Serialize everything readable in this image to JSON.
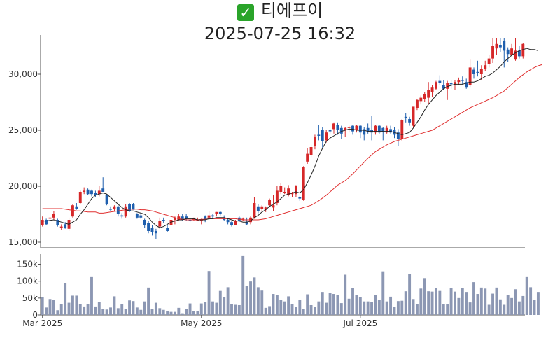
{
  "title": "티에프이",
  "title_icon": "check-mark-icon",
  "subtitle": "2025-07-25 16:32",
  "colors": {
    "up": "#d62728",
    "down": "#1f5fae",
    "ma5": "#222222",
    "ma20": "#e03030",
    "volume": "#8c97b3",
    "axis": "#333333"
  },
  "chart_data": [
    {
      "type": "candlestick",
      "title": "티에프이",
      "subtitle": "2025-07-25 16:32",
      "ylim": [
        14500,
        33500
      ],
      "y_ticks": [
        {
          "v": 15000,
          "label": "15,000"
        },
        {
          "v": 20000,
          "label": "20,000"
        },
        {
          "v": 25000,
          "label": "25,000"
        },
        {
          "v": 30000,
          "label": "30,000"
        }
      ],
      "x_ticks": [
        {
          "i": 0,
          "label": "Mar 2025"
        },
        {
          "i": 42,
          "label": "May 2025"
        },
        {
          "i": 84,
          "label": "Jul 2025"
        }
      ],
      "ohlc": [
        [
          16500,
          17300,
          16400,
          17000
        ],
        [
          17000,
          17100,
          16500,
          16600
        ],
        [
          17100,
          17400,
          16900,
          17200
        ],
        [
          17200,
          17800,
          17000,
          17500
        ],
        [
          17000,
          17100,
          16400,
          16500
        ],
        [
          16300,
          16600,
          16100,
          16400
        ],
        [
          16600,
          16800,
          16200,
          16300
        ],
        [
          16200,
          17200,
          16000,
          17000
        ],
        [
          17300,
          18400,
          17200,
          18300
        ],
        [
          18200,
          18500,
          17900,
          18000
        ],
        [
          18500,
          19600,
          18400,
          19500
        ],
        [
          19500,
          19900,
          19300,
          19600
        ],
        [
          19700,
          19800,
          19200,
          19300
        ],
        [
          19600,
          19700,
          19100,
          19300
        ],
        [
          19400,
          19600,
          19000,
          19200
        ],
        [
          19300,
          20000,
          19100,
          19600
        ],
        [
          19800,
          20800,
          19600,
          19500
        ],
        [
          19200,
          19300,
          18300,
          18400
        ],
        [
          18000,
          18200,
          17800,
          17900
        ],
        [
          18000,
          18300,
          17800,
          18200
        ],
        [
          18200,
          18300,
          17300,
          17500
        ],
        [
          17400,
          17600,
          17100,
          17300
        ],
        [
          17300,
          18400,
          17200,
          18200
        ],
        [
          18400,
          18500,
          17700,
          17800
        ],
        [
          18400,
          18500,
          17900,
          17900
        ],
        [
          17500,
          17600,
          17100,
          17200
        ],
        [
          17400,
          17600,
          17100,
          17200
        ],
        [
          17000,
          17100,
          16300,
          16500
        ],
        [
          16700,
          16900,
          15800,
          16000
        ],
        [
          16300,
          16500,
          15600,
          15900
        ],
        [
          16000,
          16200,
          15300,
          15800
        ],
        [
          16400,
          17200,
          16200,
          16900
        ],
        [
          17000,
          17200,
          16700,
          16900
        ],
        [
          16300,
          16500,
          15900,
          16000
        ],
        [
          16500,
          17100,
          16400,
          17000
        ],
        [
          17000,
          17300,
          16600,
          17200
        ],
        [
          17000,
          17500,
          16900,
          17300
        ],
        [
          17300,
          17500,
          16900,
          17000
        ],
        [
          17300,
          17500,
          16900,
          17100
        ],
        [
          17000,
          17200,
          16800,
          16900
        ],
        [
          17100,
          17200,
          16900,
          17100
        ],
        [
          17000,
          17200,
          16900,
          17000
        ],
        [
          16900,
          17100,
          16600,
          17000
        ],
        [
          17300,
          17400,
          16800,
          17000
        ],
        [
          17200,
          17800,
          17000,
          17400
        ],
        [
          17400,
          17500,
          17100,
          17300
        ],
        [
          17500,
          17700,
          17300,
          17700
        ],
        [
          17700,
          17800,
          17400,
          17500
        ],
        [
          17200,
          17400,
          16900,
          17000
        ],
        [
          17000,
          17100,
          16600,
          16800
        ],
        [
          16800,
          16900,
          16400,
          16500
        ],
        [
          16500,
          17000,
          16500,
          16900
        ],
        [
          17200,
          17300,
          16900,
          16900
        ],
        [
          17100,
          17200,
          16900,
          17100
        ],
        [
          16800,
          17200,
          16500,
          16600
        ],
        [
          16800,
          17300,
          16600,
          17200
        ],
        [
          17200,
          19000,
          17100,
          18500
        ],
        [
          18200,
          18400,
          17600,
          17800
        ],
        [
          18000,
          18300,
          17800,
          18200
        ],
        [
          17900,
          18200,
          17700,
          18100
        ],
        [
          18300,
          18900,
          18200,
          18800
        ],
        [
          18100,
          19200,
          17800,
          18300
        ],
        [
          18500,
          20000,
          18300,
          19600
        ],
        [
          19500,
          20300,
          19300,
          20000
        ],
        [
          19400,
          19900,
          19300,
          19500
        ],
        [
          19200,
          20100,
          19100,
          19800
        ],
        [
          19300,
          19500,
          19000,
          19400
        ],
        [
          19300,
          20100,
          19000,
          20000
        ],
        [
          19000,
          19100,
          18700,
          18900
        ],
        [
          18800,
          21800,
          18700,
          21700
        ],
        [
          22200,
          23400,
          22000,
          22900
        ],
        [
          22800,
          23700,
          22600,
          23500
        ],
        [
          23600,
          24600,
          23300,
          24400
        ],
        [
          24600,
          25500,
          24100,
          24500
        ],
        [
          25000,
          25300,
          23400,
          24000
        ],
        [
          24100,
          25000,
          23900,
          24800
        ],
        [
          25000,
          25100,
          24700,
          24900
        ],
        [
          25100,
          25700,
          24700,
          25600
        ],
        [
          25500,
          25700,
          24600,
          25000
        ],
        [
          25200,
          25400,
          24200,
          24700
        ],
        [
          25000,
          25300,
          24400,
          25200
        ],
        [
          25200,
          25400,
          24800,
          25300
        ],
        [
          25400,
          25500,
          24600,
          24900
        ],
        [
          25000,
          25500,
          24800,
          25400
        ],
        [
          25400,
          25500,
          24300,
          24800
        ],
        [
          25100,
          25300,
          24100,
          24600
        ],
        [
          25200,
          25600,
          24700,
          24900
        ],
        [
          25000,
          26300,
          24100,
          24800
        ],
        [
          24800,
          25500,
          24600,
          25400
        ],
        [
          25400,
          25500,
          24700,
          24800
        ],
        [
          25200,
          25300,
          24100,
          24900
        ],
        [
          24800,
          25400,
          24700,
          25200
        ],
        [
          25100,
          25400,
          24700,
          24800
        ],
        [
          25000,
          25300,
          24300,
          24600
        ],
        [
          24800,
          25100,
          23600,
          24200
        ],
        [
          24200,
          26000,
          24000,
          25900
        ],
        [
          26200,
          26500,
          25700,
          26100
        ],
        [
          26000,
          26200,
          25400,
          25700
        ],
        [
          25400,
          27000,
          25200,
          27100
        ],
        [
          27000,
          27800,
          26800,
          27700
        ],
        [
          27600,
          28100,
          27300,
          27900
        ],
        [
          27800,
          28400,
          27500,
          28200
        ],
        [
          27900,
          29300,
          27300,
          28600
        ],
        [
          28400,
          29000,
          28000,
          28800
        ],
        [
          28700,
          29400,
          28600,
          29300
        ],
        [
          29400,
          29900,
          29000,
          29200
        ],
        [
          29000,
          29500,
          28600,
          28700
        ],
        [
          28700,
          29400,
          27700,
          29200
        ],
        [
          29200,
          29500,
          28700,
          29100
        ],
        [
          29000,
          29500,
          28600,
          29300
        ],
        [
          29300,
          29700,
          29000,
          29500
        ],
        [
          29500,
          29800,
          29100,
          29400
        ],
        [
          29300,
          29600,
          28700,
          28800
        ],
        [
          29000,
          31300,
          28800,
          30600
        ],
        [
          30400,
          30600,
          29600,
          30000
        ],
        [
          30200,
          31200,
          29800,
          30100
        ],
        [
          30000,
          30800,
          29500,
          30500
        ],
        [
          30500,
          31200,
          30300,
          30800
        ],
        [
          30900,
          31700,
          30600,
          31400
        ],
        [
          31400,
          33200,
          31000,
          32500
        ],
        [
          32300,
          33200,
          31700,
          32700
        ],
        [
          32600,
          33200,
          32000,
          32400
        ],
        [
          33000,
          33200,
          30600,
          32100
        ],
        [
          32200,
          32400,
          31100,
          31800
        ],
        [
          31700,
          32700,
          31600,
          32300
        ],
        [
          31300,
          33200,
          31200,
          32100
        ],
        [
          32100,
          32500,
          31400,
          31600
        ],
        [
          31600,
          32800,
          31400,
          32700
        ]
      ],
      "ma5": [
        16900,
        16900,
        16950,
        17000,
        16900,
        16800,
        16700,
        16600,
        16800,
        17000,
        17500,
        17900,
        18400,
        18900,
        19200,
        19300,
        19400,
        19300,
        19000,
        18700,
        18400,
        18100,
        17900,
        17800,
        17800,
        17700,
        17600,
        17500,
        17200,
        16800,
        16500,
        16300,
        16400,
        16600,
        16800,
        16900,
        17000,
        17000,
        17100,
        17100,
        17100,
        17000,
        17000,
        17000,
        17100,
        17100,
        17200,
        17200,
        17200,
        17100,
        17000,
        16900,
        16900,
        16800,
        16800,
        16900,
        17200,
        17400,
        17700,
        17900,
        18200,
        18400,
        18600,
        18900,
        19200,
        19300,
        19400,
        19500,
        19400,
        19700,
        20300,
        21000,
        21800,
        22700,
        23400,
        24000,
        24300,
        24500,
        24700,
        24900,
        25000,
        25100,
        25100,
        25000,
        25000,
        25000,
        24900,
        24900,
        24900,
        24900,
        24900,
        24900,
        24900,
        24800,
        24700,
        24600,
        24700,
        24800,
        25200,
        25700,
        26200,
        26800,
        27300,
        27700,
        28100,
        28400,
        28700,
        28900,
        29000,
        29100,
        29100,
        29100,
        29200,
        29300,
        29300,
        29400,
        29600,
        29800,
        29900,
        30100,
        30400,
        30700,
        31100,
        31400,
        31700,
        31900,
        32100,
        32200,
        32300,
        32200,
        32200,
        32100
      ],
      "ma20": [
        18000,
        18000,
        18000,
        18000,
        18000,
        18000,
        17950,
        17900,
        17850,
        17800,
        17800,
        17750,
        17700,
        17700,
        17700,
        17600,
        17600,
        17650,
        17700,
        17750,
        17800,
        17850,
        17900,
        17950,
        17950,
        17950,
        17900,
        17900,
        17850,
        17800,
        17700,
        17600,
        17500,
        17400,
        17300,
        17200,
        17100,
        17050,
        17000,
        17000,
        17000,
        17000,
        17050,
        17050,
        17100,
        17100,
        17100,
        17100,
        17100,
        17100,
        17100,
        17100,
        17050,
        17000,
        17000,
        17000,
        17000,
        17000,
        17050,
        17100,
        17200,
        17300,
        17400,
        17500,
        17600,
        17700,
        17800,
        17900,
        18000,
        18100,
        18200,
        18300,
        18500,
        18700,
        18950,
        19200,
        19500,
        19800,
        20100,
        20300,
        20500,
        20800,
        21100,
        21450,
        21800,
        22150,
        22500,
        22800,
        23100,
        23300,
        23500,
        23700,
        23850,
        24000,
        24100,
        24200,
        24300,
        24400,
        24500,
        24600,
        24700,
        24800,
        24900,
        25000,
        25200,
        25400,
        25600,
        25800,
        26000,
        26200,
        26400,
        26600,
        26800,
        27000,
        27150,
        27300,
        27450,
        27600,
        27750,
        27900,
        28100,
        28300,
        28500,
        28800,
        29100,
        29400,
        29700,
        29950,
        30200,
        30400,
        30600,
        30750,
        30850
      ]
    },
    {
      "type": "bar",
      "ylim": [
        0,
        180000
      ],
      "y_ticks": [
        {
          "v": 0,
          "label": "0"
        },
        {
          "v": 50000,
          "label": "50k"
        },
        {
          "v": 100000,
          "label": "100k"
        },
        {
          "v": 150000,
          "label": "150k"
        }
      ],
      "x_ticks": [
        {
          "i": 0,
          "label": "Mar 2025"
        },
        {
          "i": 42,
          "label": "May 2025"
        },
        {
          "i": 84,
          "label": "Jul 2025"
        }
      ],
      "values": [
        53000,
        22000,
        47000,
        44000,
        14000,
        33000,
        95000,
        36000,
        57000,
        57000,
        32000,
        25000,
        33000,
        112000,
        25000,
        38000,
        18000,
        16000,
        22000,
        55000,
        20000,
        31000,
        17000,
        43000,
        41000,
        22000,
        15000,
        40000,
        81000,
        18000,
        36000,
        20000,
        15000,
        11000,
        9000,
        9000,
        21000,
        5000,
        18000,
        34000,
        12000,
        12000,
        34000,
        38000,
        130000,
        40000,
        36000,
        71000,
        52000,
        82000,
        33000,
        30000,
        29000,
        174000,
        86000,
        99000,
        111000,
        82000,
        72000,
        21000,
        26000,
        62000,
        60000,
        44000,
        40000,
        55000,
        33000,
        23000,
        45000,
        18000,
        61000,
        29000,
        24000,
        40000,
        68000,
        36000,
        65000,
        62000,
        59000,
        35000,
        119000,
        48000,
        80000,
        58000,
        53000,
        40000,
        40000,
        38000,
        59000,
        44000,
        129000,
        40000,
        54000,
        23000,
        41000,
        42000,
        70000,
        121000,
        47000,
        33000,
        78000,
        109000,
        70000,
        69000,
        79000,
        71000,
        31000,
        31000,
        80000,
        69000,
        50000,
        79000,
        68000,
        37000,
        97000,
        62000,
        81000,
        78000,
        30000,
        63000,
        81000,
        46000,
        30000,
        58000,
        50000,
        76000,
        40000,
        56000,
        112000,
        82000,
        44000,
        68000
      ]
    }
  ]
}
